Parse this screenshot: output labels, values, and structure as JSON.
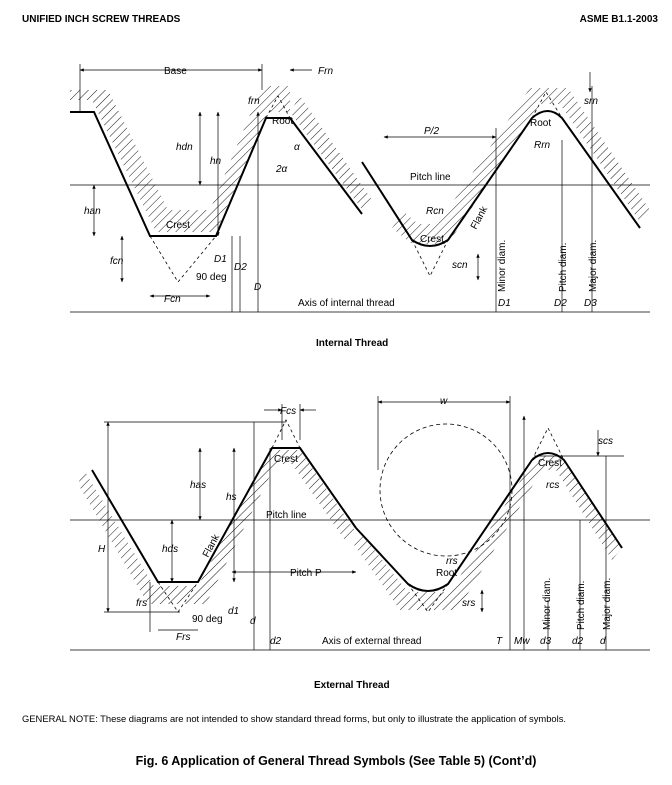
{
  "header": {
    "left": "UNIFIED INCH SCREW THREADS",
    "right": "ASME B1.1-2003"
  },
  "internal": {
    "title": "Internal Thread",
    "labels": {
      "base": "Base",
      "frn": "Frn",
      "frn2": "frn",
      "root": "Root",
      "alpha": "α",
      "two_alpha": "2α",
      "hdn": "hdn",
      "hn": "hn",
      "han": "han",
      "crest": "Crest",
      "fcn": "fcn",
      "d1": "D1",
      "d2": "D2",
      "d": "D",
      "deg90": "90 deg",
      "fcn_big": "Fcn",
      "axis": "Axis of internal thread",
      "p2": "P/2",
      "pitch_line": "Pitch line",
      "rcn": "Rcn",
      "crest2": "Crest",
      "flank": "Flank",
      "scn": "scn",
      "root2": "Root",
      "rrn": "Rrn",
      "srn": "srn",
      "minor_diam": "Minor diam.",
      "pitch_diam": "Pitch diam.",
      "major_diam": "Major diam.",
      "bd1": "D1",
      "bd2": "D2",
      "bd3": "D3"
    }
  },
  "external": {
    "title": "External Thread",
    "labels": {
      "fcs": "Fcs",
      "crest": "Crest",
      "has": "has",
      "hs": "hs",
      "pitch_line": "Pitch line",
      "H": "H",
      "hds": "hds",
      "flank": "Flank",
      "pitch_p": "Pitch P",
      "frs": "frs",
      "deg90": "90 deg",
      "d1": "d1",
      "d": "d",
      "frs_big": "Frs",
      "d2": "d2",
      "axis": "Axis of external thread",
      "w": "w",
      "rrs": "rrs",
      "root": "Root",
      "srs": "srs",
      "crest2": "Crest",
      "rcs": "rcs",
      "scs": "scs",
      "T": "T",
      "Mw": "Mw",
      "d3": "d3",
      "bd2": "d2",
      "bd": "d",
      "minor_diam": "Minor diam.",
      "pitch_diam": "Pitch diam.",
      "major_diam": "Major diam."
    }
  },
  "note": "GENERAL NOTE: These diagrams are not intended to show standard thread forms, but only to illustrate the application of symbols.",
  "figure_caption": "Fig. 6 Application of General Thread Symbols (See Table 5) (Cont’d)"
}
